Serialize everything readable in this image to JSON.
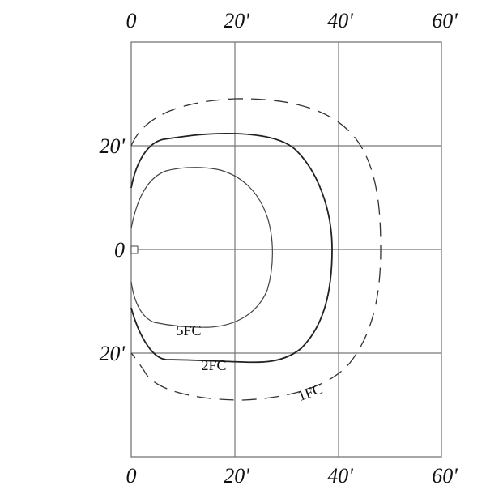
{
  "diagram": {
    "top_axis": [
      "0",
      "20'",
      "40'",
      "60'"
    ],
    "bottom_axis": [
      "0",
      "20'",
      "40'",
      "60'"
    ],
    "left_axis": [
      "20'",
      "0",
      "20'"
    ],
    "contours": [
      {
        "label": "5FC",
        "style": "thin-solid"
      },
      {
        "label": "2FC",
        "style": "solid"
      },
      {
        "label": "1FC",
        "style": "dashed"
      }
    ],
    "fixture_marker": "square-fixture-icon"
  }
}
